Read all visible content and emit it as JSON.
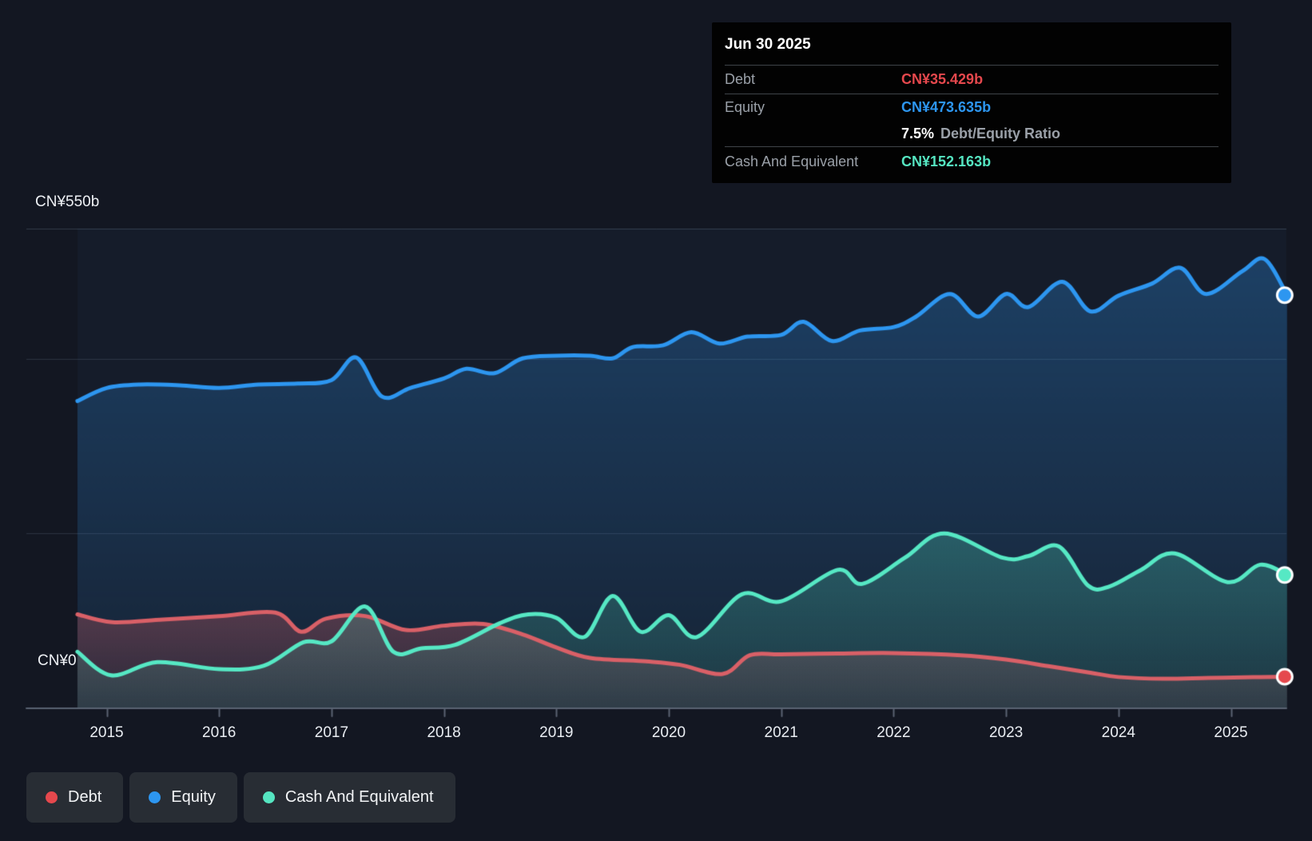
{
  "axis": {
    "y_top_label": "CN¥550b",
    "y_zero_label": "CN¥0",
    "x_ticks": [
      2015,
      2016,
      2017,
      2018,
      2019,
      2020,
      2021,
      2022,
      2023,
      2024,
      2025
    ]
  },
  "tooltip": {
    "date": "Jun 30 2025",
    "debt_label": "Debt",
    "debt_value": "CN¥35.429b",
    "equity_label": "Equity",
    "equity_value": "CN¥473.635b",
    "ratio_value": "7.5%",
    "ratio_label": "Debt/Equity Ratio",
    "cash_label": "Cash And Equivalent",
    "cash_value": "CN¥152.163b"
  },
  "legend": {
    "items": [
      {
        "label": "Debt",
        "color": "#e5484d"
      },
      {
        "label": "Equity",
        "color": "#2d96f0"
      },
      {
        "label": "Cash And Equivalent",
        "color": "#55e5c1"
      }
    ]
  },
  "colors": {
    "background": "#131722",
    "grid": "rgba(165,190,215,0.17)",
    "axis_line": "#5a6372",
    "debt_line": "#d96067",
    "equity_line": "#2d96f0",
    "cash_line": "#56e8c4",
    "debt_marker": "#e5484d",
    "equity_marker": "#2d96f0",
    "cash_marker": "#56e8c4"
  },
  "chart_data": {
    "type": "area",
    "title": "Debt to Equity History and Analysis",
    "x_domain": [
      2014.74,
      2025.5
    ],
    "y_domain": [
      0,
      550
    ],
    "y_unit": "CN¥ billions",
    "gridline_values": [
      550,
      400,
      200,
      0
    ],
    "legend_position": "bottom-left",
    "series": [
      {
        "name": "Equity",
        "color": "#2d96f0",
        "fill_rgb": [
          45,
          140,
          225
        ],
        "points": [
          [
            2014.74,
            352
          ],
          [
            2015.0,
            367
          ],
          [
            2015.3,
            371
          ],
          [
            2015.65,
            370
          ],
          [
            2016.0,
            367
          ],
          [
            2016.35,
            371
          ],
          [
            2016.7,
            372
          ],
          [
            2017.0,
            376
          ],
          [
            2017.22,
            402
          ],
          [
            2017.45,
            357
          ],
          [
            2017.7,
            367
          ],
          [
            2018.0,
            378
          ],
          [
            2018.2,
            389
          ],
          [
            2018.45,
            384
          ],
          [
            2018.7,
            401
          ],
          [
            2019.0,
            404
          ],
          [
            2019.3,
            404
          ],
          [
            2019.5,
            401
          ],
          [
            2019.68,
            414
          ],
          [
            2019.95,
            416
          ],
          [
            2020.2,
            431
          ],
          [
            2020.45,
            418
          ],
          [
            2020.7,
            426
          ],
          [
            2021.0,
            428
          ],
          [
            2021.2,
            443
          ],
          [
            2021.45,
            421
          ],
          [
            2021.7,
            433
          ],
          [
            2022.0,
            437
          ],
          [
            2022.2,
            449
          ],
          [
            2022.5,
            475
          ],
          [
            2022.75,
            449
          ],
          [
            2023.0,
            475
          ],
          [
            2023.2,
            460
          ],
          [
            2023.5,
            489
          ],
          [
            2023.75,
            455
          ],
          [
            2024.0,
            473
          ],
          [
            2024.3,
            487
          ],
          [
            2024.55,
            505
          ],
          [
            2024.78,
            475
          ],
          [
            2025.1,
            501
          ],
          [
            2025.3,
            515
          ],
          [
            2025.5,
            473.635
          ]
        ]
      },
      {
        "name": "Debt",
        "color": "#d96067",
        "fill_rgb": [
          217,
          96,
          103
        ],
        "points": [
          [
            2014.74,
            107
          ],
          [
            2015.05,
            98
          ],
          [
            2015.5,
            101
          ],
          [
            2016.0,
            105
          ],
          [
            2016.5,
            109
          ],
          [
            2016.73,
            87
          ],
          [
            2016.95,
            102
          ],
          [
            2017.3,
            105
          ],
          [
            2017.66,
            89
          ],
          [
            2018.0,
            94
          ],
          [
            2018.35,
            96
          ],
          [
            2018.7,
            84
          ],
          [
            2019.0,
            69
          ],
          [
            2019.3,
            57
          ],
          [
            2019.8,
            53
          ],
          [
            2020.1,
            49
          ],
          [
            2020.48,
            38.5
          ],
          [
            2020.72,
            60
          ],
          [
            2021.0,
            61
          ],
          [
            2021.5,
            62
          ],
          [
            2022.0,
            62.5
          ],
          [
            2022.6,
            60
          ],
          [
            2023.0,
            55
          ],
          [
            2023.4,
            47
          ],
          [
            2023.75,
            40
          ],
          [
            2024.0,
            35
          ],
          [
            2024.4,
            33
          ],
          [
            2024.8,
            34
          ],
          [
            2025.2,
            34.8
          ],
          [
            2025.5,
            35.429
          ]
        ]
      },
      {
        "name": "Cash And Equivalent",
        "color": "#56e8c4",
        "fill_rgb": [
          86,
          232,
          196
        ],
        "points": [
          [
            2014.74,
            64
          ],
          [
            2015.04,
            37
          ],
          [
            2015.45,
            52
          ],
          [
            2016.0,
            44
          ],
          [
            2016.4,
            48
          ],
          [
            2016.75,
            75
          ],
          [
            2017.0,
            76
          ],
          [
            2017.3,
            116
          ],
          [
            2017.55,
            64
          ],
          [
            2017.8,
            68
          ],
          [
            2018.1,
            72
          ],
          [
            2018.5,
            97
          ],
          [
            2018.75,
            107
          ],
          [
            2019.0,
            103
          ],
          [
            2019.25,
            81
          ],
          [
            2019.5,
            128
          ],
          [
            2019.75,
            87
          ],
          [
            2020.0,
            106
          ],
          [
            2020.25,
            81
          ],
          [
            2020.65,
            130
          ],
          [
            2021.0,
            122
          ],
          [
            2021.5,
            158
          ],
          [
            2021.72,
            142
          ],
          [
            2022.1,
            172
          ],
          [
            2022.45,
            200
          ],
          [
            2022.97,
            172
          ],
          [
            2023.2,
            174
          ],
          [
            2023.47,
            185
          ],
          [
            2023.73,
            140
          ],
          [
            2023.92,
            139
          ],
          [
            2024.2,
            158
          ],
          [
            2024.5,
            177
          ],
          [
            2024.97,
            144
          ],
          [
            2025.26,
            164
          ],
          [
            2025.5,
            152.163
          ]
        ]
      }
    ]
  }
}
